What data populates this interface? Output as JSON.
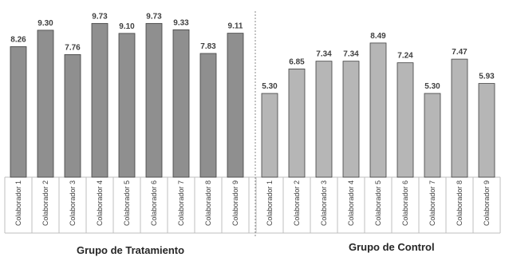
{
  "chart_data": {
    "type": "bar",
    "ylim": [
      0,
      10
    ],
    "grid": false,
    "legend": "none",
    "colors": {
      "treatment": "#8f8f8f",
      "control": "#b6b6b6",
      "stroke": "#3f3f3f"
    },
    "groups": [
      {
        "name": "Grupo de Tratamiento",
        "categories": [
          "Colaborador 1",
          "Colaborador 2",
          "Colaborador 3",
          "Colaborador 4",
          "Colaborador 5",
          "Colaborador 6",
          "Colaborador 7",
          "Colaborador 8",
          "Colaborador 9"
        ],
        "values": [
          8.26,
          9.3,
          7.76,
          9.73,
          9.1,
          9.73,
          9.33,
          7.83,
          9.11
        ],
        "labels": [
          "8.26",
          "9.30",
          "7.76",
          "9.73",
          "9.10",
          "9.73",
          "9.33",
          "7.83",
          "9.11"
        ]
      },
      {
        "name": "Grupo de Control",
        "categories": [
          "Colaborador 1",
          "Colaborador 2",
          "Colaborador 3",
          "Colaborador 4",
          "Colaborador 5",
          "Colaborador 6",
          "Colaborador 7",
          "Colaborador 8",
          "Colaborador 9"
        ],
        "values": [
          5.3,
          6.85,
          7.34,
          7.34,
          8.49,
          7.24,
          5.3,
          7.47,
          5.93
        ],
        "labels": [
          "5.30",
          "6.85",
          "7.34",
          "7.34",
          "8.49",
          "7.24",
          "5.30",
          "7.47",
          "5.93"
        ]
      }
    ]
  }
}
